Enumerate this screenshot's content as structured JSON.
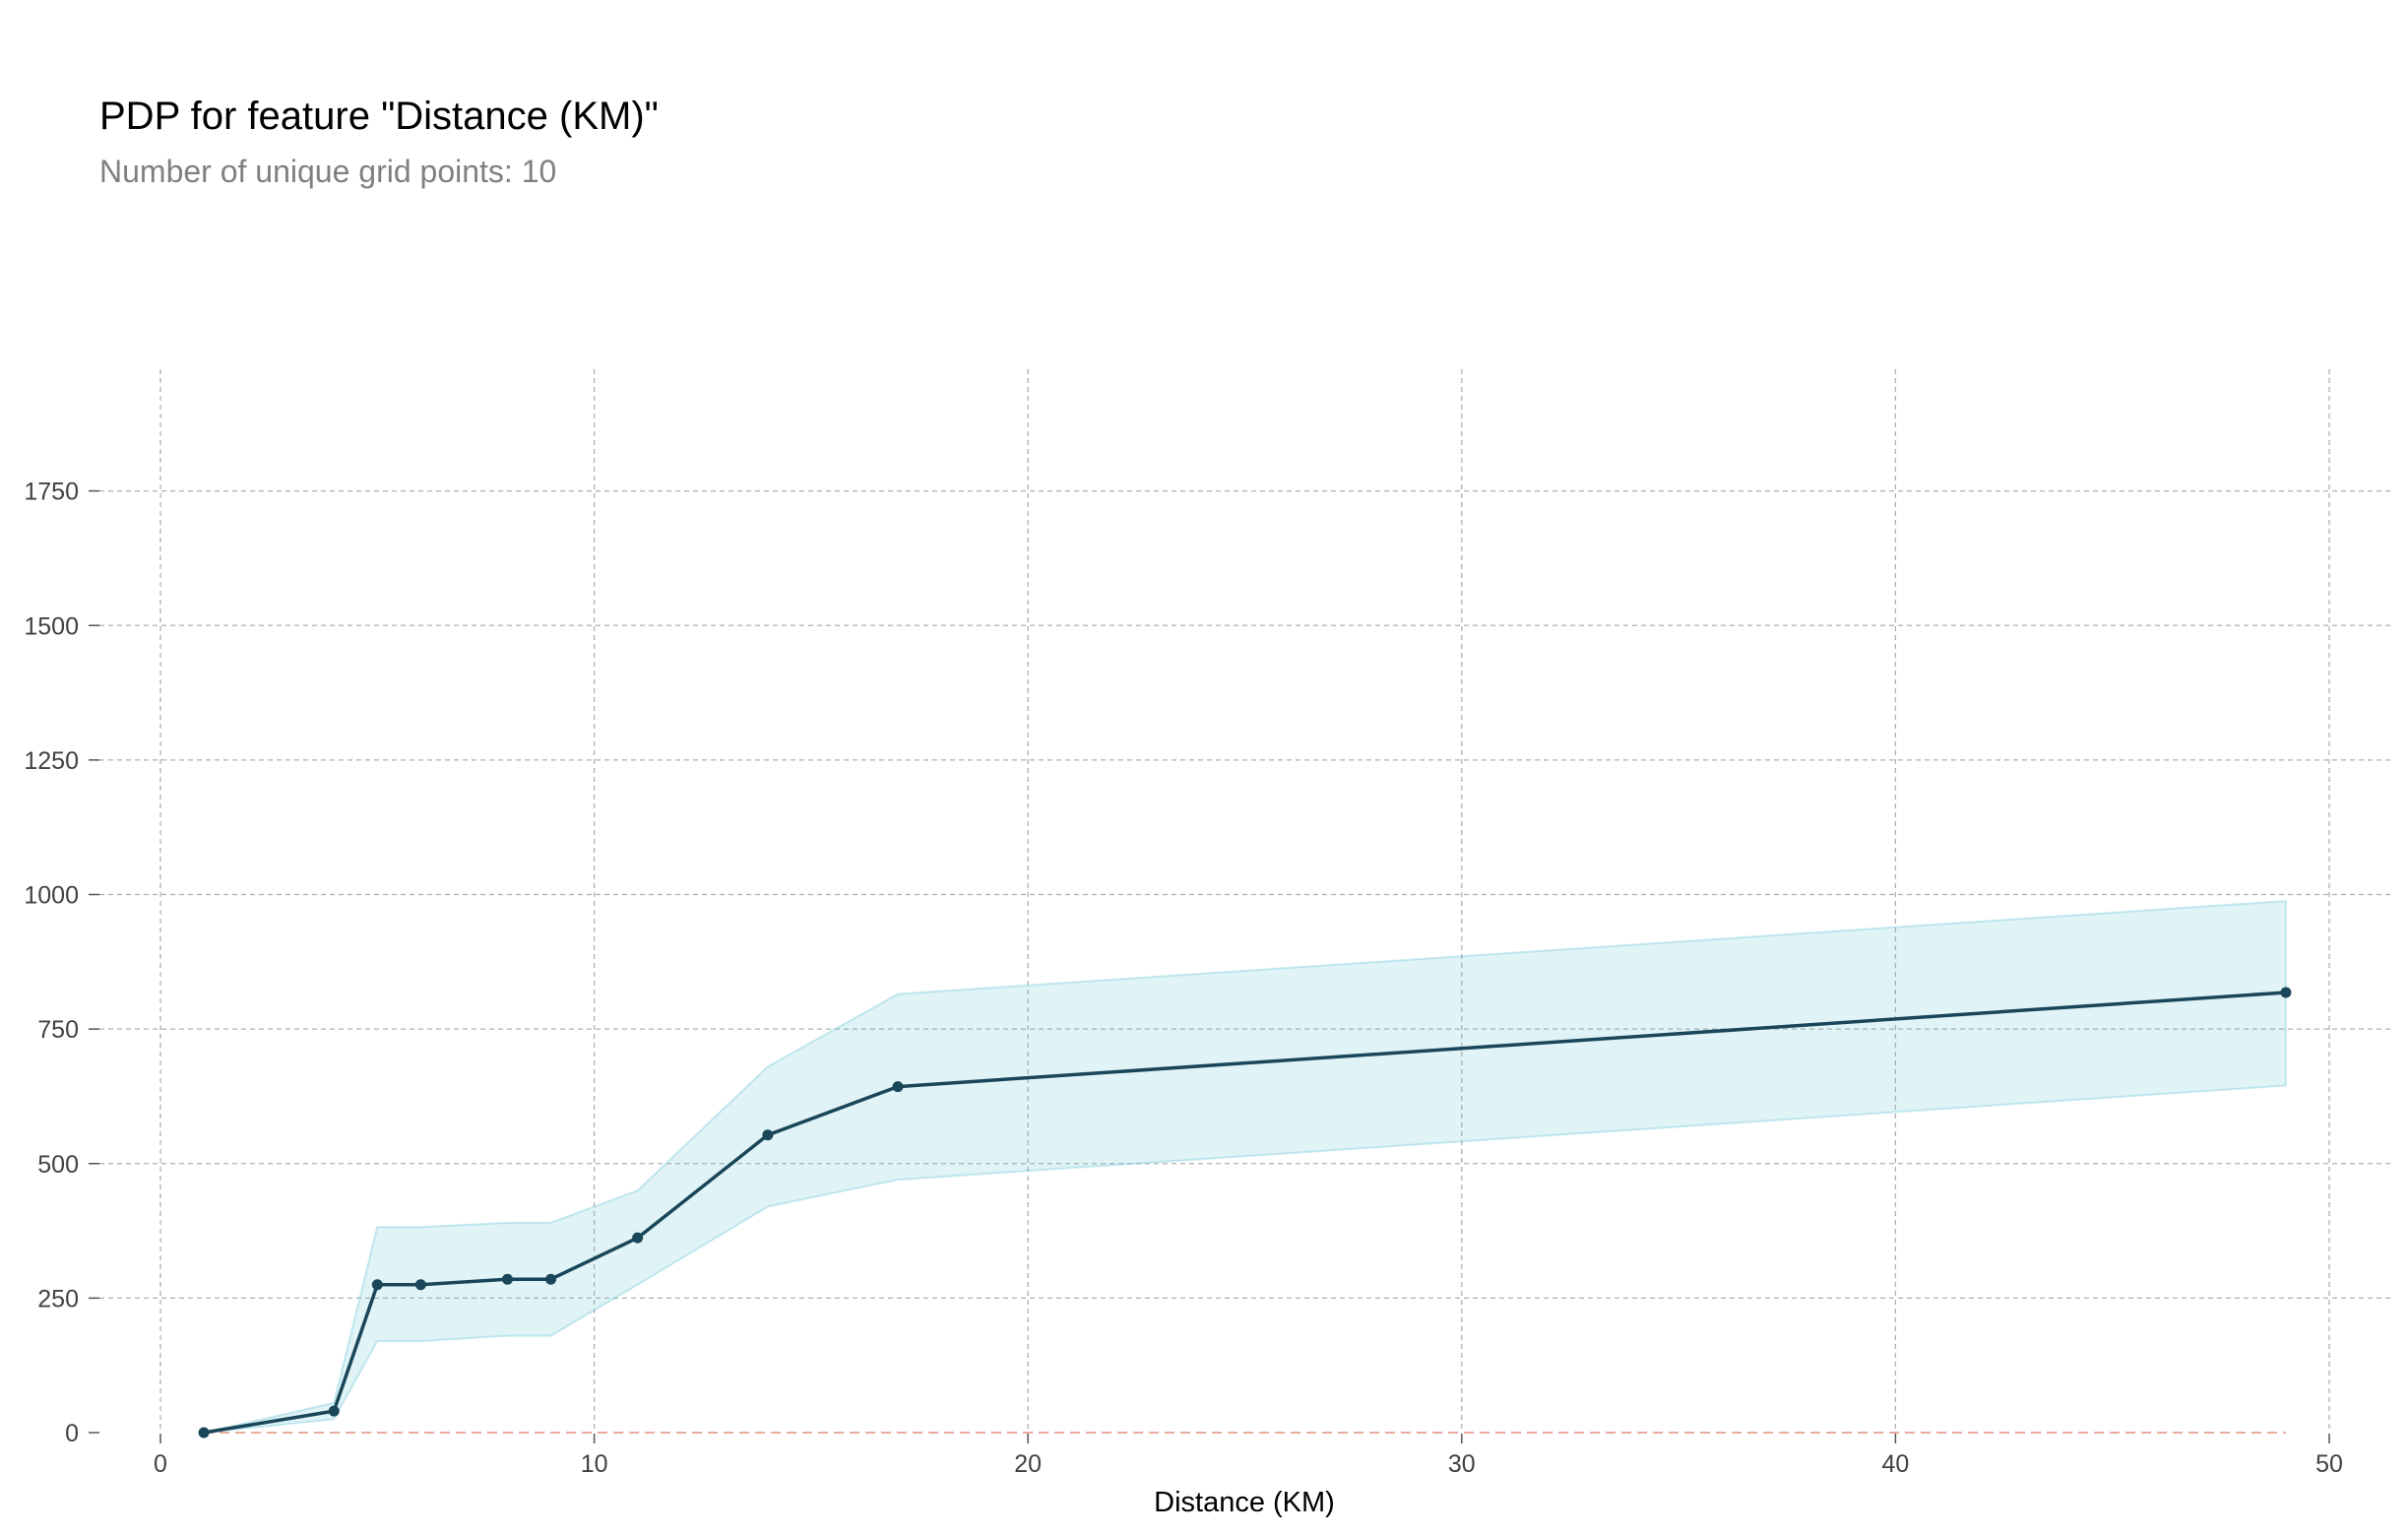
{
  "chart_data": {
    "type": "line",
    "title": "PDP for feature \"Distance (KM)\"",
    "subtitle": "Number of unique grid points: 10",
    "xlabel": "Distance (KM)",
    "ylabel": "",
    "xlim": [
      -1.4,
      51.4
    ],
    "ylim": [
      0,
      1975
    ],
    "xticks": [
      0,
      10,
      20,
      30,
      40,
      50
    ],
    "yticks": [
      0,
      250,
      500,
      750,
      1000,
      1250,
      1500,
      1750
    ],
    "grid": true,
    "legend": "none",
    "series": [
      {
        "kind": "pdp-line",
        "x": [
          1,
          4,
          5,
          6,
          8,
          9,
          11,
          14,
          17,
          49
        ],
        "y": [
          0,
          40,
          275,
          275,
          285,
          285,
          362,
          553,
          643,
          818
        ]
      }
    ],
    "confidence_band": {
      "x": [
        1,
        4,
        5,
        6,
        8,
        9,
        11,
        14,
        17,
        49
      ],
      "upper": [
        0,
        55,
        382,
        382,
        390,
        390,
        450,
        680,
        815,
        988
      ],
      "lower": [
        0,
        25,
        170,
        170,
        180,
        180,
        275,
        420,
        470,
        645
      ]
    },
    "baseline": {
      "y": 0,
      "x_range": [
        1,
        49
      ]
    },
    "colors": {
      "line": "#1a4659",
      "band_fill": "#66c2d7",
      "band_edge": "#66c2d7",
      "baseline": "#e8ab9e",
      "grid": "#b0b0b0",
      "tick_text": "#424242",
      "xlabel_text": "#000000"
    }
  }
}
